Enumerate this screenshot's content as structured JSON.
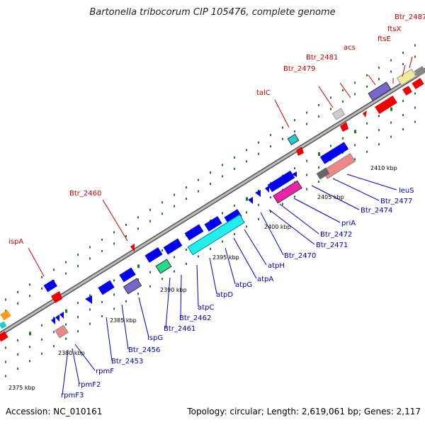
{
  "title": "Bartonella tribocorum CIP 105476, complete genome",
  "footer": {
    "accession": "Accession: NC_010161",
    "summary": "Topology: circular; Length: 2,619,061 bp; Genes: 2,117"
  },
  "colors": {
    "backbone": "#888888",
    "minus_strand_label": "#cc0000",
    "plus_strand_label": "#0000bb",
    "gene_red": "#ee0000",
    "gene_blue": "#0000ee",
    "tick": "#1a7a1a"
  },
  "scale_ticks": [
    "2375 kbp",
    "2380 kbp",
    "2385 kbp",
    "2390 kbp",
    "2395 kbp",
    "2400 kbp",
    "2405 kbp",
    "2410 kbp"
  ],
  "upper_labels": [
    {
      "text": "Btr_2487"
    },
    {
      "text": "ftsX"
    },
    {
      "text": "ftsE"
    },
    {
      "text": "acs"
    },
    {
      "text": "Btr_2481"
    },
    {
      "text": "Btr_2479"
    },
    {
      "text": "talC"
    },
    {
      "text": "Btr_2460"
    },
    {
      "text": "ispA"
    }
  ],
  "lower_labels": [
    {
      "text": "leuS"
    },
    {
      "text": "Btr_2477"
    },
    {
      "text": "Btr_2474"
    },
    {
      "text": "priA"
    },
    {
      "text": "Btr_2472"
    },
    {
      "text": "Btr_2471"
    },
    {
      "text": "Btr_2470"
    },
    {
      "text": "atpH"
    },
    {
      "text": "atpA"
    },
    {
      "text": "atpG"
    },
    {
      "text": "atpD"
    },
    {
      "text": "atpC"
    },
    {
      "text": "Btr_2462"
    },
    {
      "text": "Btr_2461"
    },
    {
      "text": "ispG"
    },
    {
      "text": "Btr_2456"
    },
    {
      "text": "Btr_2453"
    },
    {
      "text": "rpmF"
    },
    {
      "text": "rpmF2"
    },
    {
      "text": "rpmF3"
    }
  ]
}
